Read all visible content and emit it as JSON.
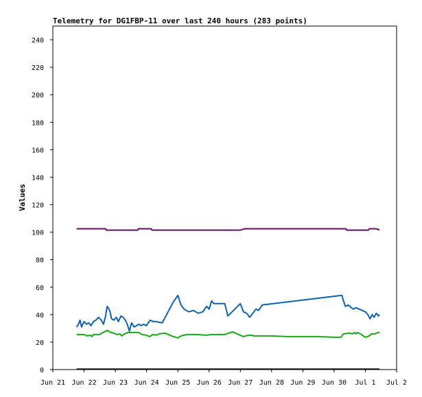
{
  "chart_data": {
    "type": "line",
    "title": "Telemetry for DG1FBP-11 over last 240 hours (283 points)",
    "xlabel": "",
    "ylabel": "Values",
    "ylim": [
      0,
      250
    ],
    "xlim": [
      21.0,
      32.0
    ],
    "grid": false,
    "legend": "none",
    "x_ticks": [
      {
        "x": 21,
        "label": "Jun 21"
      },
      {
        "x": 22,
        "label": "Jun 22"
      },
      {
        "x": 23,
        "label": "Jun 23"
      },
      {
        "x": 24,
        "label": "Jun 24"
      },
      {
        "x": 25,
        "label": "Jun 25"
      },
      {
        "x": 26,
        "label": "Jun 26"
      },
      {
        "x": 27,
        "label": "Jun 27"
      },
      {
        "x": 28,
        "label": "Jun 28"
      },
      {
        "x": 29,
        "label": "Jun 29"
      },
      {
        "x": 30,
        "label": "Jun 30"
      },
      {
        "x": 31,
        "label": "Jul 1"
      },
      {
        "x": 32,
        "label": "Jul 2"
      }
    ],
    "y_ticks": [
      0,
      20,
      40,
      60,
      80,
      100,
      120,
      140,
      160,
      180,
      200,
      220,
      240
    ],
    "series": [
      {
        "color": "#6a0a6a",
        "points": [
          [
            21.76,
            102.5
          ],
          [
            22.69,
            102.5
          ],
          [
            22.71,
            101.5
          ],
          [
            23.72,
            101.5
          ],
          [
            23.74,
            102.5
          ],
          [
            24.15,
            102.5
          ],
          [
            24.17,
            101.5
          ],
          [
            27.0,
            101.5
          ],
          [
            27.15,
            102.5
          ],
          [
            30.38,
            102.5
          ],
          [
            30.4,
            101.5
          ],
          [
            31.1,
            101.5
          ],
          [
            31.13,
            102.5
          ],
          [
            31.35,
            102.5
          ],
          [
            31.45,
            101.5
          ]
        ]
      },
      {
        "color": "#0b62b3",
        "points": [
          [
            21.76,
            31
          ],
          [
            21.82,
            33
          ],
          [
            21.87,
            36
          ],
          [
            21.92,
            31
          ],
          [
            22.0,
            35
          ],
          [
            22.08,
            33
          ],
          [
            22.15,
            34
          ],
          [
            22.22,
            32
          ],
          [
            22.3,
            35
          ],
          [
            22.38,
            36
          ],
          [
            22.46,
            38
          ],
          [
            22.55,
            36
          ],
          [
            22.62,
            33
          ],
          [
            22.68,
            38
          ],
          [
            22.74,
            46
          ],
          [
            22.82,
            43
          ],
          [
            22.88,
            37
          ],
          [
            22.95,
            36
          ],
          [
            23.03,
            38
          ],
          [
            23.1,
            35
          ],
          [
            23.18,
            39
          ],
          [
            23.25,
            38
          ],
          [
            23.32,
            36
          ],
          [
            23.38,
            33
          ],
          [
            23.45,
            28
          ],
          [
            23.52,
            34
          ],
          [
            23.6,
            31
          ],
          [
            23.68,
            32
          ],
          [
            23.75,
            33
          ],
          [
            23.82,
            32
          ],
          [
            23.9,
            33
          ],
          [
            24.0,
            32
          ],
          [
            24.05,
            34
          ],
          [
            24.12,
            36
          ],
          [
            24.2,
            35
          ],
          [
            24.28,
            35
          ],
          [
            24.5,
            34
          ],
          [
            24.85,
            49
          ],
          [
            25.0,
            54
          ],
          [
            25.1,
            47
          ],
          [
            25.2,
            44
          ],
          [
            25.35,
            42
          ],
          [
            25.5,
            43
          ],
          [
            25.65,
            41
          ],
          [
            25.8,
            42
          ],
          [
            25.92,
            46
          ],
          [
            26.0,
            44
          ],
          [
            26.08,
            50
          ],
          [
            26.15,
            48
          ],
          [
            26.22,
            48
          ],
          [
            26.5,
            48
          ],
          [
            26.6,
            39
          ],
          [
            27.0,
            48
          ],
          [
            27.1,
            42
          ],
          [
            27.2,
            41
          ],
          [
            27.3,
            38
          ],
          [
            27.4,
            41
          ],
          [
            27.5,
            44
          ],
          [
            27.58,
            43
          ],
          [
            27.7,
            47
          ],
          [
            30.25,
            54
          ],
          [
            30.3,
            50
          ],
          [
            30.36,
            46
          ],
          [
            30.45,
            47
          ],
          [
            30.55,
            45
          ],
          [
            30.62,
            44
          ],
          [
            30.7,
            45
          ],
          [
            30.8,
            44
          ],
          [
            31.0,
            42
          ],
          [
            31.08,
            40
          ],
          [
            31.15,
            37
          ],
          [
            31.22,
            40
          ],
          [
            31.28,
            38
          ],
          [
            31.35,
            41
          ],
          [
            31.42,
            39
          ],
          [
            31.45,
            40
          ]
        ]
      },
      {
        "color": "#18a818",
        "points": [
          [
            21.76,
            25.5
          ],
          [
            22.0,
            25.5
          ],
          [
            22.1,
            24.5
          ],
          [
            22.2,
            25
          ],
          [
            22.25,
            24
          ],
          [
            22.3,
            25.5
          ],
          [
            22.5,
            25.5
          ],
          [
            22.6,
            27
          ],
          [
            22.75,
            28.5
          ],
          [
            22.85,
            27
          ],
          [
            22.95,
            26.5
          ],
          [
            23.05,
            25.5
          ],
          [
            23.15,
            26
          ],
          [
            23.2,
            24.5
          ],
          [
            23.3,
            26
          ],
          [
            23.4,
            27
          ],
          [
            23.5,
            27
          ],
          [
            23.75,
            27
          ],
          [
            23.85,
            25.5
          ],
          [
            24.0,
            25
          ],
          [
            24.1,
            24
          ],
          [
            24.2,
            25.5
          ],
          [
            24.3,
            25
          ],
          [
            24.4,
            26
          ],
          [
            24.6,
            26.5
          ],
          [
            24.8,
            24.5
          ],
          [
            25.0,
            23
          ],
          [
            25.1,
            24.5
          ],
          [
            25.3,
            25.5
          ],
          [
            25.6,
            25.5
          ],
          [
            25.9,
            25
          ],
          [
            26.1,
            25.5
          ],
          [
            26.3,
            25.5
          ],
          [
            26.5,
            25.5
          ],
          [
            26.75,
            27.5
          ],
          [
            26.95,
            25.5
          ],
          [
            27.1,
            24
          ],
          [
            27.25,
            25
          ],
          [
            27.35,
            25
          ],
          [
            27.45,
            24.5
          ],
          [
            27.6,
            24.5
          ],
          [
            28.0,
            24.5
          ],
          [
            28.5,
            24
          ],
          [
            29.5,
            24
          ],
          [
            30.0,
            23.5
          ],
          [
            30.22,
            23.5
          ],
          [
            30.3,
            26
          ],
          [
            30.5,
            26.5
          ],
          [
            30.6,
            26
          ],
          [
            30.65,
            27
          ],
          [
            30.7,
            26
          ],
          [
            30.75,
            27
          ],
          [
            30.85,
            26
          ],
          [
            30.9,
            25
          ],
          [
            31.0,
            23.5
          ],
          [
            31.08,
            24
          ],
          [
            31.15,
            25
          ],
          [
            31.2,
            26
          ],
          [
            31.32,
            26
          ],
          [
            31.4,
            27
          ],
          [
            31.45,
            27
          ]
        ]
      },
      {
        "color": "#000000",
        "points": [
          [
            21.76,
            0.3
          ],
          [
            31.45,
            0.3
          ]
        ]
      }
    ]
  }
}
